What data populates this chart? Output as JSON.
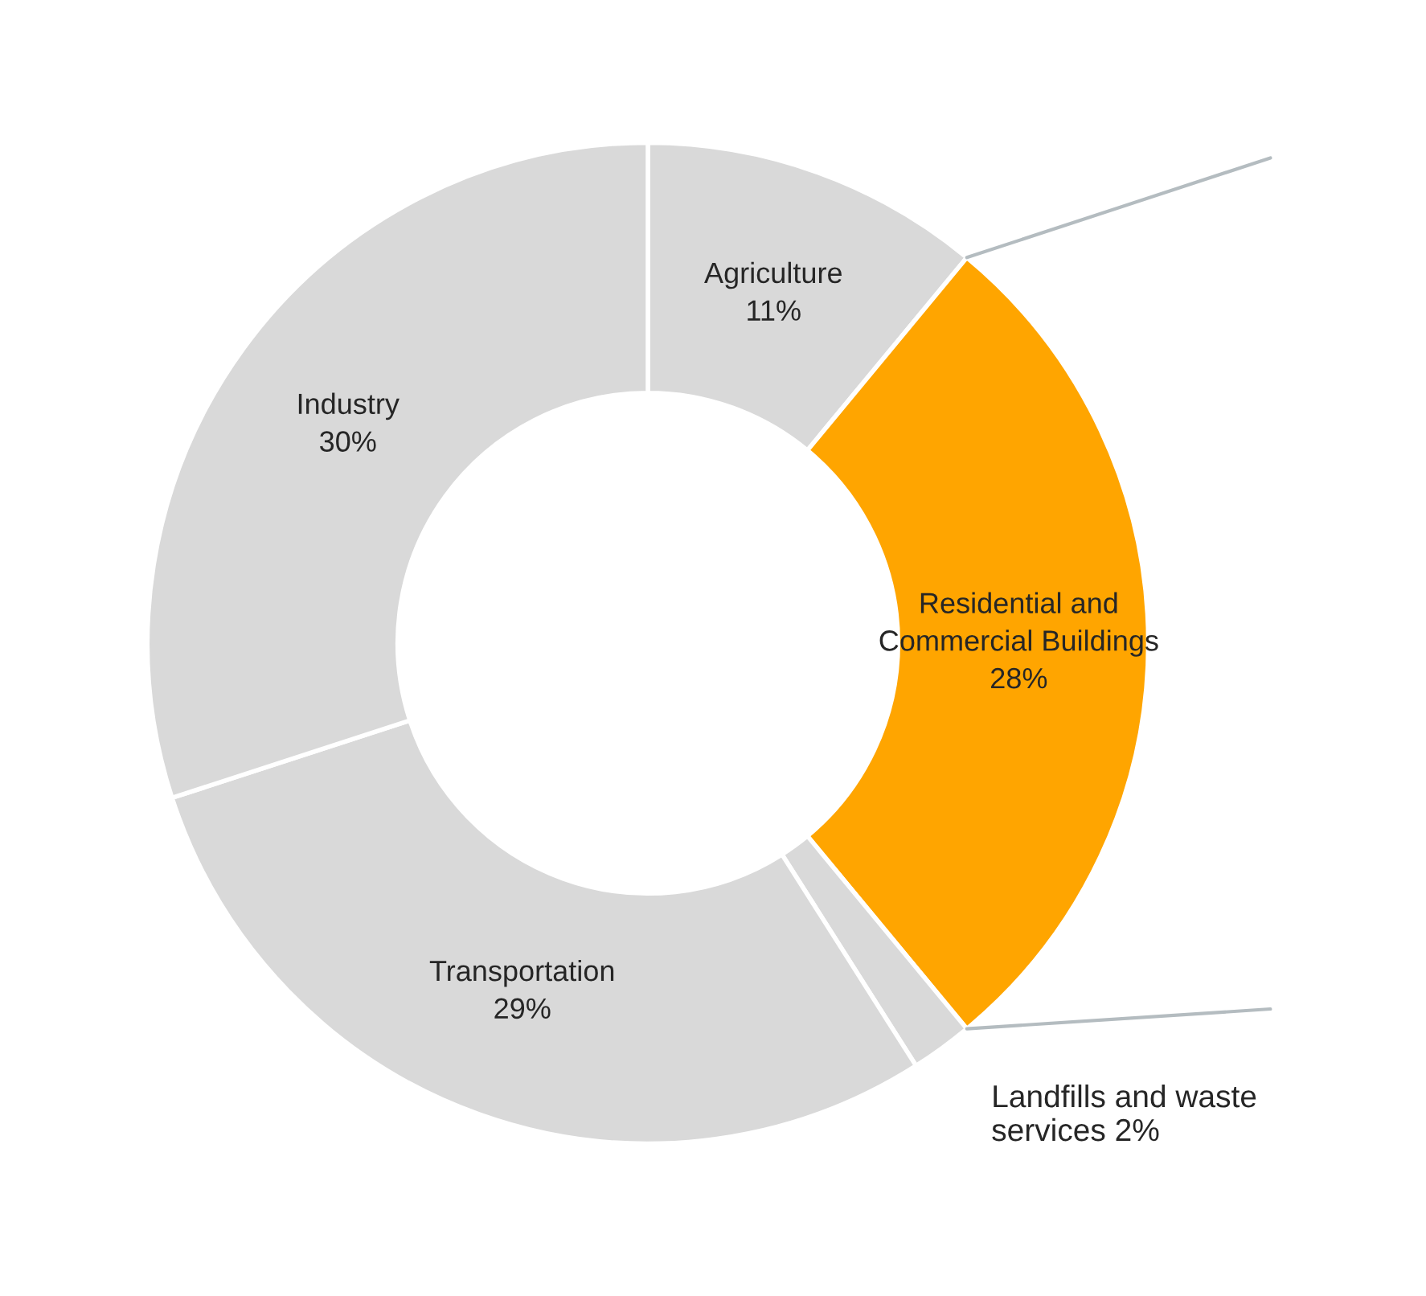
{
  "chart_data": {
    "type": "donut",
    "categories": [
      "Agriculture",
      "Residential and Commercial Buildings",
      "Landfills and waste services",
      "Transportation",
      "Industry"
    ],
    "values": [
      11,
      28,
      2,
      29,
      30
    ],
    "value_labels": [
      "11%",
      "28%",
      "2%",
      "29%",
      "30%"
    ],
    "colors": [
      "#d9d9d9",
      "#ffa500",
      "#d9d9d9",
      "#d9d9d9",
      "#d9d9d9"
    ],
    "legend": false
  }
}
